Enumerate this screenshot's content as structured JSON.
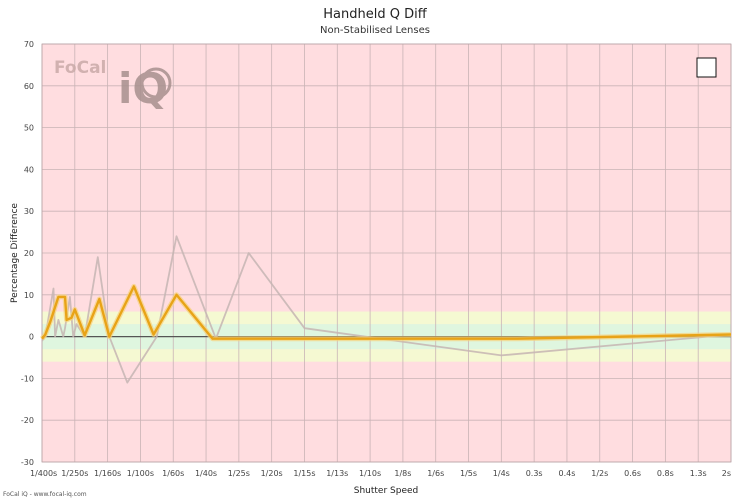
{
  "chart_data": {
    "type": "line",
    "title": "Handheld Q Diff",
    "subtitle": "Non-Stabilised Lenses",
    "xlabel": "Shutter Speed",
    "ylabel": "Percentage Difference",
    "ylim": [
      -30,
      70
    ],
    "yticks": [
      -30,
      -20,
      -10,
      0,
      10,
      20,
      30,
      40,
      50,
      60,
      70
    ],
    "xlim": [
      0,
      21
    ],
    "categories": [
      "1/400s",
      "1/250s",
      "1/160s",
      "1/100s",
      "1/60s",
      "1/40s",
      "1/25s",
      "1/20s",
      "1/15s",
      "1/13s",
      "1/10s",
      "1/8s",
      "1/6s",
      "1/5s",
      "1/4s",
      "0.3s",
      "0.4s",
      "1/2s",
      "0.6s",
      "0.8s",
      "1.3s",
      "2s"
    ],
    "bands": [
      {
        "from": -6,
        "to": -3,
        "color": "#f5f9d2"
      },
      {
        "from": -3,
        "to": 3,
        "color": "#dff6df"
      },
      {
        "from": 3,
        "to": 6,
        "color": "#f5f9d2"
      }
    ],
    "background_color": "#ffdde0",
    "grid": true,
    "series": [
      {
        "color": "#e8a317",
        "x": [
          0,
          0.1,
          0.25,
          0.5,
          0.7,
          0.75,
          0.9,
          1.0,
          1.3,
          1.75,
          2.05,
          2.8,
          3.4,
          4.1,
          5.2,
          8.2,
          14.5,
          21
        ],
        "values": [
          -0.5,
          0.5,
          3.5,
          9.5,
          9.5,
          4.0,
          4.5,
          6.5,
          0.3,
          9.0,
          0.0,
          12.0,
          0.5,
          10.0,
          -0.5,
          -0.5,
          -0.5,
          0.5
        ]
      },
      {
        "color": "#c5b5b3",
        "x": [
          0,
          0.1,
          0.35,
          0.4,
          0.5,
          0.65,
          0.7,
          0.85,
          0.95,
          1.05,
          1.3,
          1.7,
          2.05,
          2.6,
          3.5,
          4.1,
          5.3,
          6.3,
          8.0,
          14.0,
          21
        ],
        "values": [
          -1.0,
          0.0,
          11.5,
          0.0,
          4.0,
          0.0,
          2.0,
          9.5,
          0.0,
          3.0,
          0.0,
          19.0,
          0.0,
          -11.0,
          0.0,
          24.0,
          -0.5,
          20.0,
          2.0,
          -4.5,
          0.5
        ]
      }
    ]
  },
  "footer": "FoCal iQ - www.focal-iq.com",
  "logo": {
    "focal": "FoCal",
    "iq": "iQ"
  }
}
